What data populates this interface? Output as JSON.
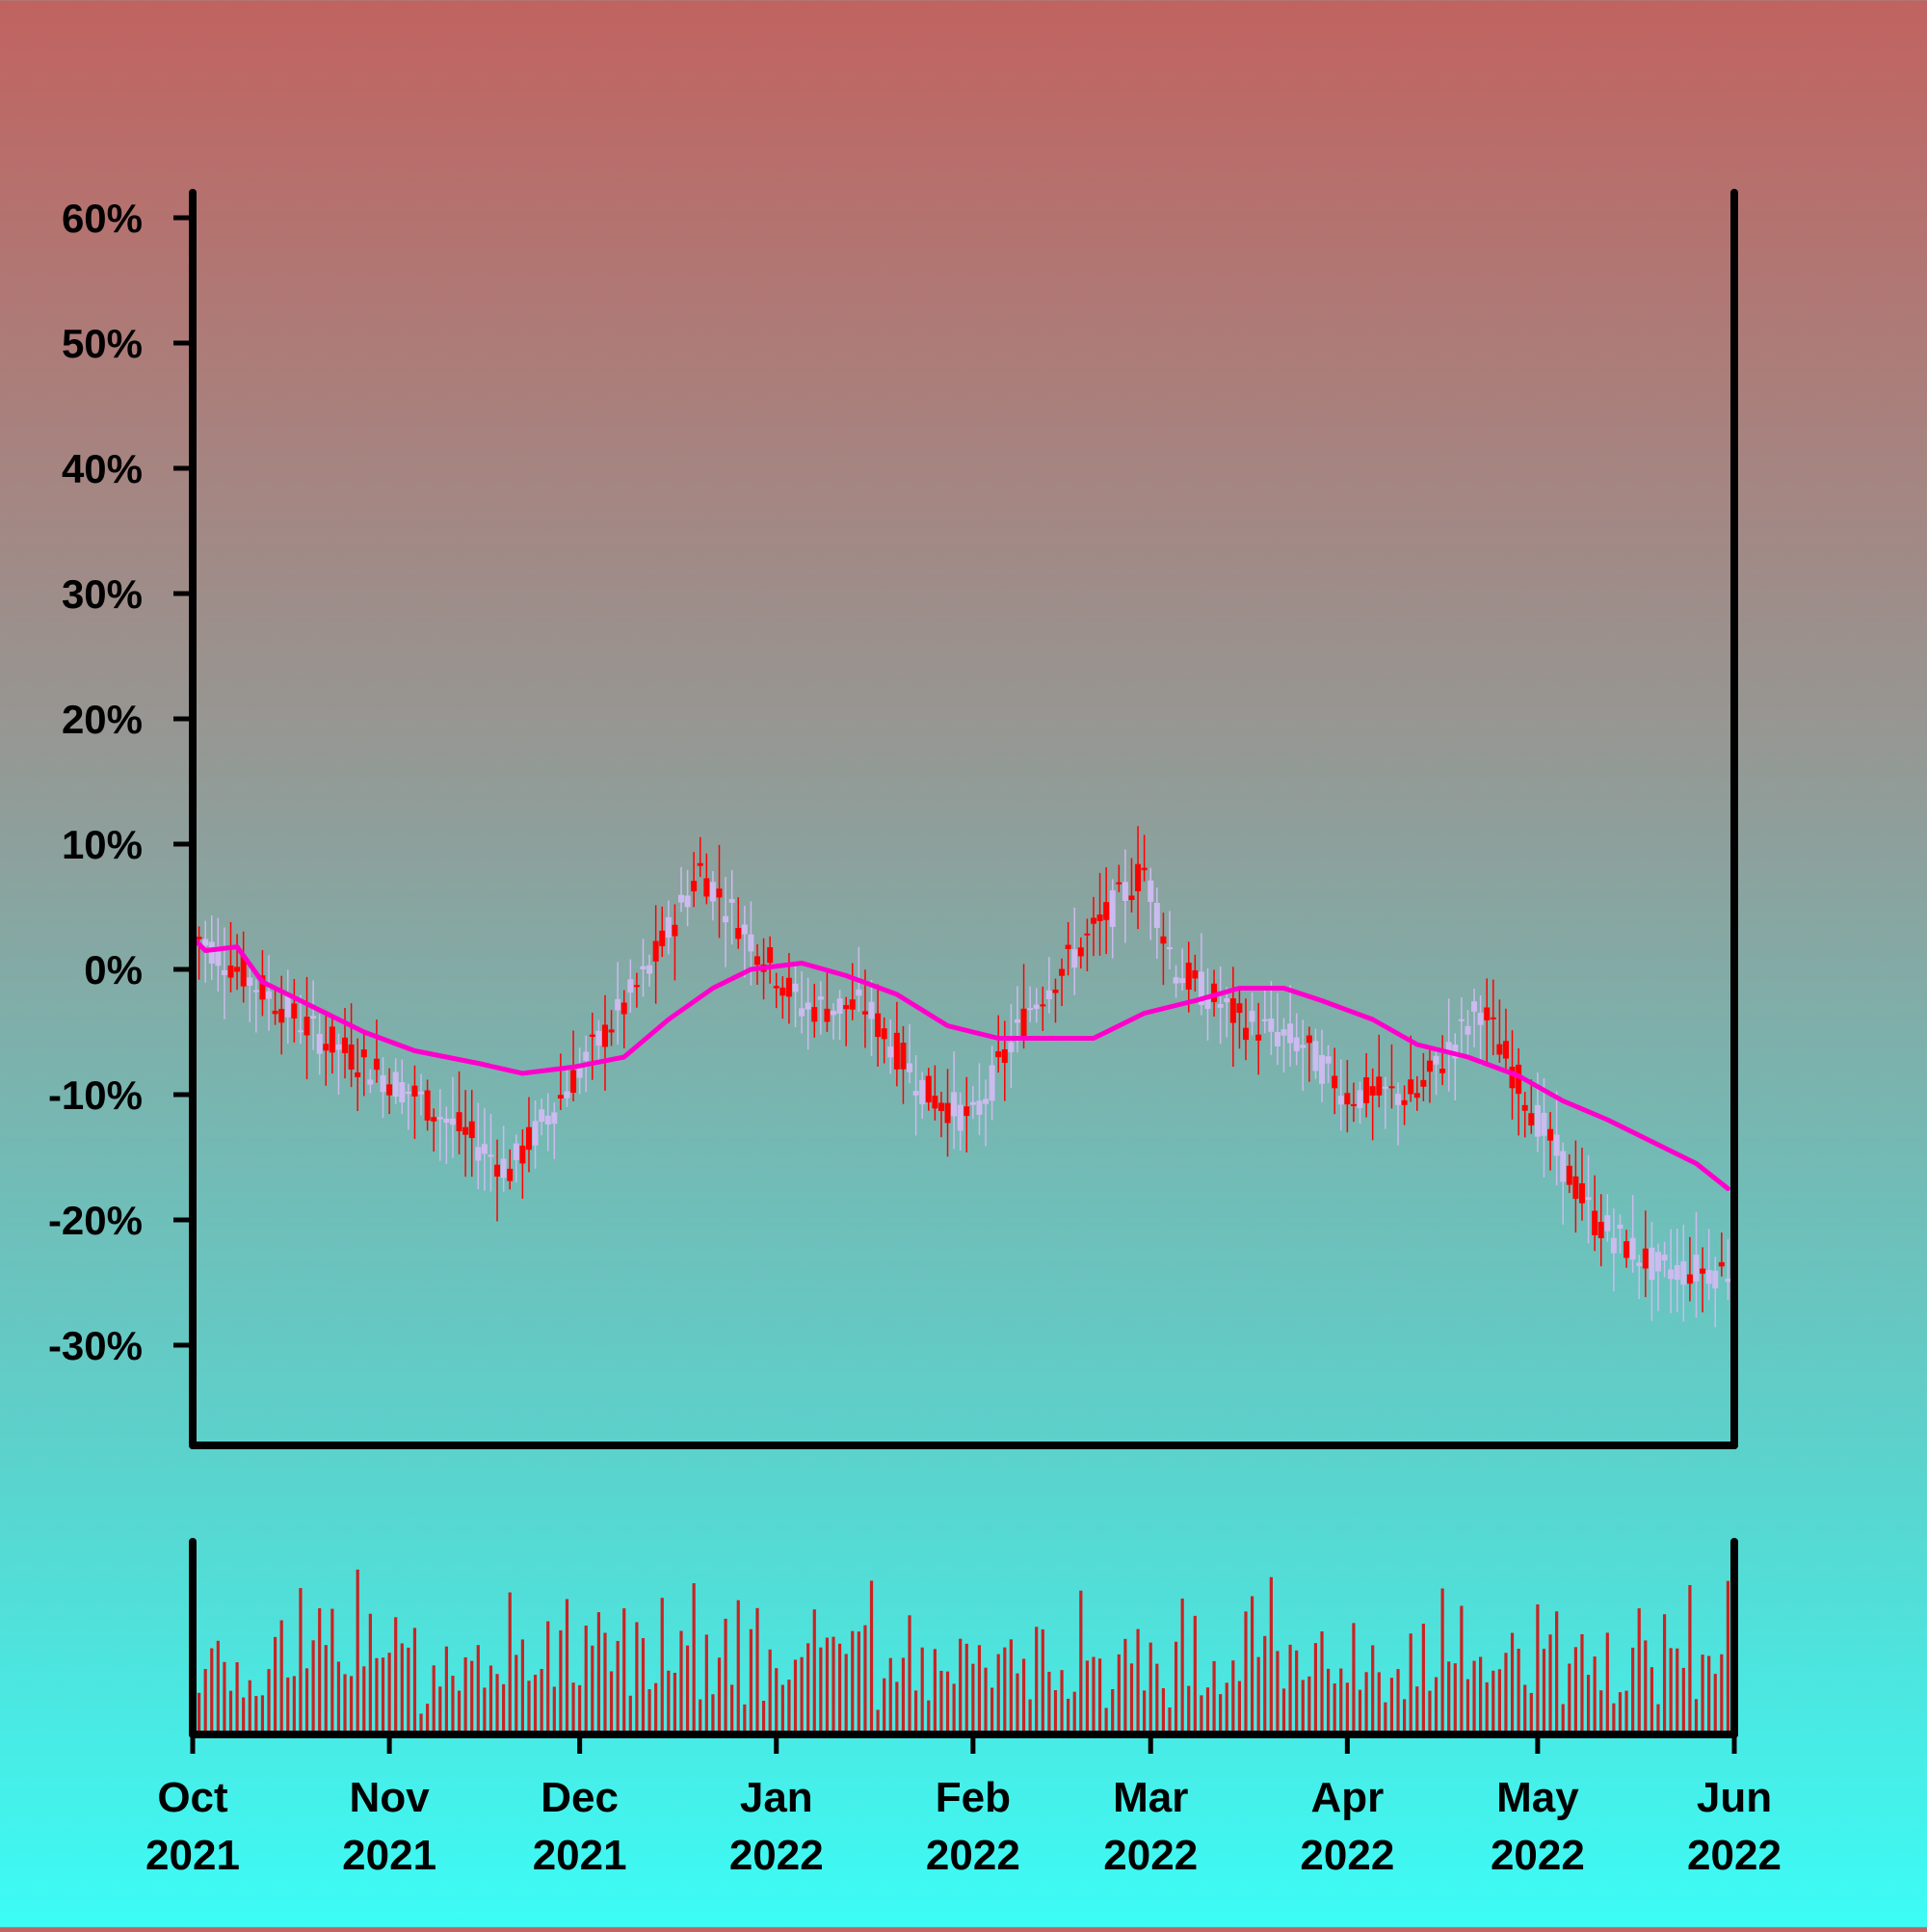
{
  "chart_data": {
    "type": "candlestick",
    "title": "",
    "xlabel": "",
    "ylabel": "",
    "y_unit": "%",
    "ylim": [
      -38,
      62
    ],
    "y_ticks": [
      60,
      50,
      40,
      30,
      20,
      10,
      0,
      -10,
      -20,
      -30
    ],
    "y_tick_labels": [
      "60%",
      "50%",
      "40%",
      "30%",
      "20%",
      "10%",
      "0%",
      "-10%",
      "-20%",
      "-30%"
    ],
    "x_range": [
      "2021-10-01",
      "2022-06-01"
    ],
    "x_ticks": [
      {
        "date": "2021-10-01",
        "month": "Oct",
        "year": "2021"
      },
      {
        "date": "2021-11-01",
        "month": "Nov",
        "year": "2021"
      },
      {
        "date": "2021-12-01",
        "month": "Dec",
        "year": "2021"
      },
      {
        "date": "2022-01-01",
        "month": "Jan",
        "year": "2022"
      },
      {
        "date": "2022-02-01",
        "month": "Feb",
        "year": "2022"
      },
      {
        "date": "2022-03-01",
        "month": "Mar",
        "year": "2022"
      },
      {
        "date": "2022-04-01",
        "month": "Apr",
        "year": "2022"
      },
      {
        "date": "2022-05-01",
        "month": "May",
        "year": "2022"
      },
      {
        "date": "2022-06-01",
        "month": "Jun",
        "year": "2022"
      }
    ],
    "grid": false,
    "legend": "none",
    "colors": {
      "up": "#ff0000",
      "down": "#ccbbee",
      "moving_average": "#ff00cc",
      "volume": "#cc2222",
      "axis": "#000000"
    },
    "trend_series": {
      "x": [
        "2021-10-01",
        "2021-10-20",
        "2021-11-05",
        "2021-11-20",
        "2021-12-01",
        "2021-12-12",
        "2021-12-20",
        "2022-01-05",
        "2022-01-15",
        "2022-01-25",
        "2022-02-01",
        "2022-02-10",
        "2022-02-20",
        "2022-02-28",
        "2022-03-05",
        "2022-03-15",
        "2022-03-25",
        "2022-04-01",
        "2022-04-12",
        "2022-04-22",
        "2022-05-01",
        "2022-05-10",
        "2022-05-20",
        "2022-05-31"
      ],
      "y": [
        3,
        -5,
        -10,
        -16,
        -8,
        0,
        8,
        -3,
        -3,
        -10,
        -12,
        -3,
        3,
        8,
        0,
        -4,
        -6,
        -10,
        -10,
        -3,
        -12,
        -20,
        -24,
        -24
      ]
    },
    "moving_average": {
      "x": [
        "2021-10-01",
        "2021-10-03",
        "2021-10-08",
        "2021-10-12",
        "2021-10-20",
        "2021-10-28",
        "2021-11-05",
        "2021-11-15",
        "2021-11-22",
        "2021-11-30",
        "2021-12-08",
        "2021-12-15",
        "2021-12-22",
        "2021-12-28",
        "2022-01-05",
        "2022-01-12",
        "2022-01-20",
        "2022-01-28",
        "2022-02-05",
        "2022-02-12",
        "2022-02-20",
        "2022-02-28",
        "2022-03-08",
        "2022-03-15",
        "2022-03-22",
        "2022-03-28",
        "2022-04-05",
        "2022-04-12",
        "2022-04-20",
        "2022-04-28",
        "2022-05-05",
        "2022-05-12",
        "2022-05-20",
        "2022-05-26",
        "2022-05-31"
      ],
      "y": [
        2.5,
        1.5,
        1.8,
        -1,
        -3,
        -5,
        -6.5,
        -7.5,
        -8.3,
        -7.8,
        -7,
        -4,
        -1.5,
        0,
        0.5,
        -0.5,
        -2,
        -4.5,
        -5.5,
        -5.5,
        -5.5,
        -3.5,
        -2.5,
        -1.5,
        -1.5,
        -2.5,
        -4,
        -6,
        -7,
        -8.5,
        -10.5,
        -12,
        -14,
        -15.5,
        -17.5
      ]
    },
    "volume": {
      "ylim": [
        0,
        100
      ],
      "values": [
        30,
        42,
        85,
        72,
        55,
        78,
        60,
        92,
        50,
        66,
        40,
        58,
        80,
        62,
        95,
        48,
        70,
        88,
        52,
        64,
        90,
        58,
        74,
        82,
        45,
        68,
        96,
        60,
        72,
        78,
        55,
        66,
        84,
        62,
        76,
        90
      ]
    }
  }
}
